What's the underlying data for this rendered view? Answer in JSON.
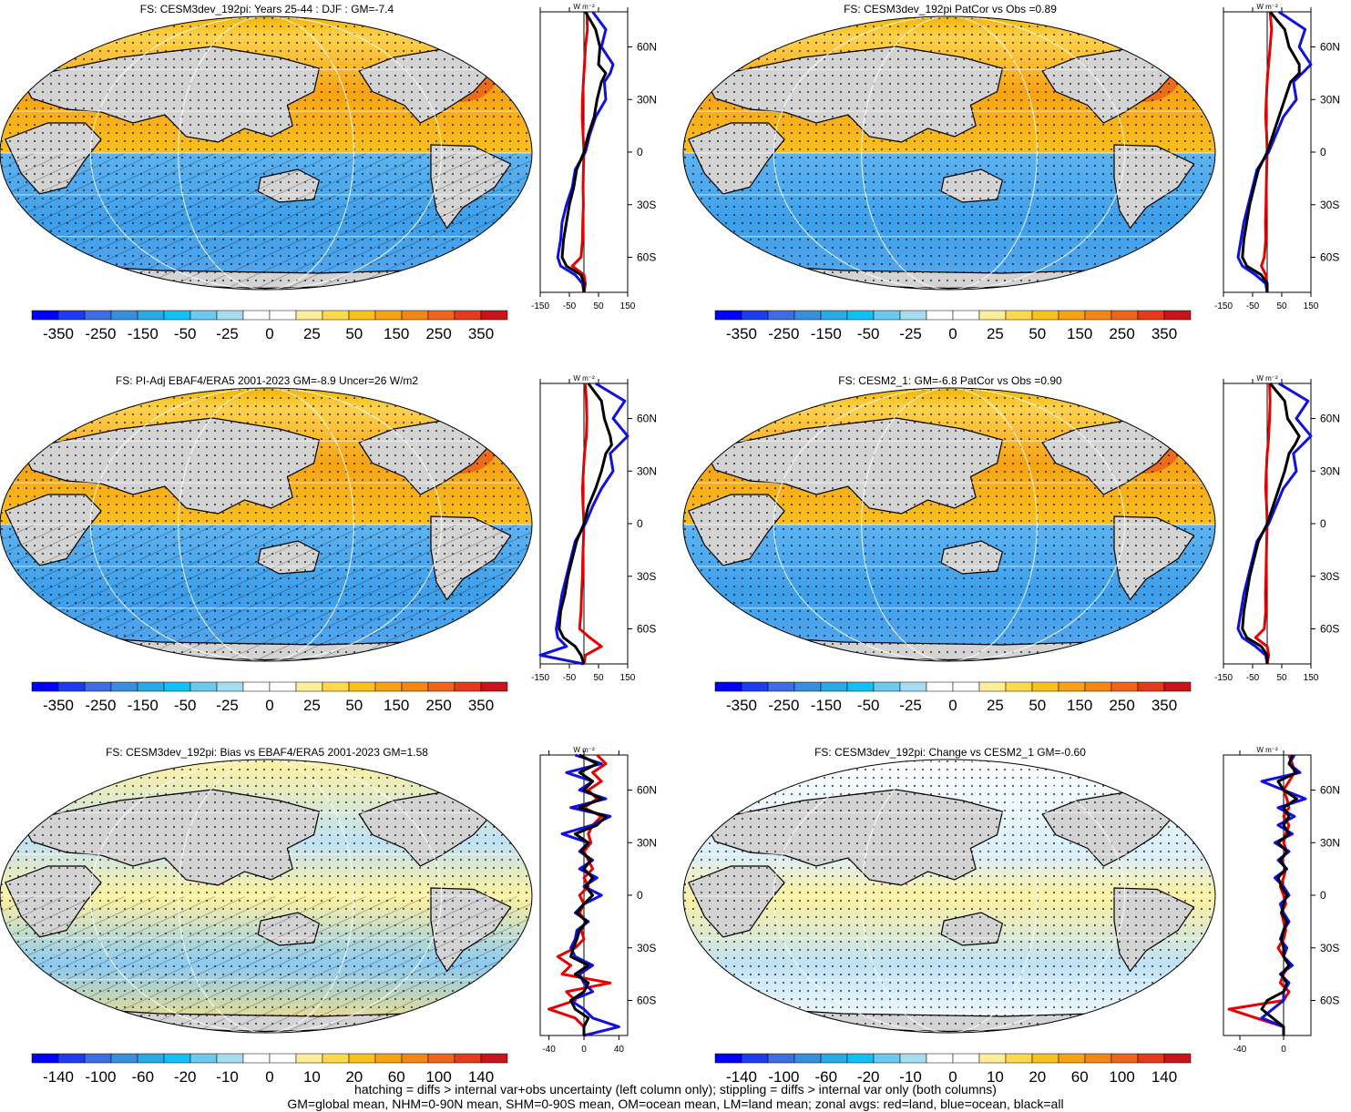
{
  "chart_data": [
    {
      "type": "map",
      "title": "FS: CESM3dev_192pi: Years 25-44 : DJF : GM=-7.4",
      "colorbar": {
        "labels": [
          "-350",
          "-250",
          "-150",
          "-50",
          "-25",
          "0",
          "25",
          "50",
          "150",
          "250",
          "350"
        ]
      },
      "zonal_profile": {
        "unit": "W m⁻²",
        "xticks": [
          "-150",
          "-50",
          "50",
          "150"
        ],
        "yticks": [
          "60N",
          "30N",
          "0",
          "30S",
          "60S"
        ],
        "xlim": [
          -150,
          150
        ],
        "lat": [
          80,
          70,
          60,
          50,
          45,
          40,
          30,
          20,
          10,
          0,
          -10,
          -20,
          -30,
          -40,
          -50,
          -60,
          -65,
          -70,
          -75,
          -80
        ],
        "series": [
          {
            "name": "land",
            "values": [
              10,
              12,
              5,
              2,
              0,
              -2,
              -5,
              -6,
              -3,
              0,
              -2,
              -3,
              -2,
              -4,
              -5,
              -10,
              -40,
              0,
              5,
              0
            ]
          },
          {
            "name": "ocean",
            "values": [
              30,
              75,
              60,
              100,
              90,
              70,
              75,
              40,
              20,
              5,
              -30,
              -40,
              -60,
              -75,
              -80,
              -90,
              -80,
              -30,
              -5,
              0
            ]
          },
          {
            "name": "all",
            "values": [
              5,
              40,
              55,
              50,
              75,
              60,
              45,
              35,
              15,
              0,
              -25,
              -35,
              -50,
              -60,
              -70,
              -75,
              -60,
              -10,
              0,
              0
            ]
          }
        ]
      }
    },
    {
      "type": "map",
      "title": "FS: CESM3dev_192pi PatCor vs Obs =0.89",
      "colorbar": {
        "labels": [
          "-350",
          "-250",
          "-150",
          "-50",
          "-25",
          "0",
          "25",
          "50",
          "150",
          "250",
          "350"
        ]
      },
      "zonal_profile": {
        "unit": "W m⁻²",
        "xticks": [
          "-150",
          "-50",
          "50",
          "150"
        ],
        "yticks": [
          "60N",
          "30N",
          "0",
          "30S",
          "60S"
        ],
        "xlim": [
          -150,
          150
        ],
        "lat": [
          80,
          70,
          60,
          50,
          45,
          40,
          30,
          20,
          10,
          0,
          -10,
          -20,
          -30,
          -40,
          -50,
          -60,
          -65,
          -70,
          -75,
          -80
        ],
        "series": [
          {
            "name": "land",
            "values": [
              10,
              15,
              10,
              5,
              2,
              0,
              -3,
              -5,
              -2,
              0,
              -2,
              -3,
              -4,
              -6,
              -5,
              -10,
              -20,
              -5,
              0,
              0
            ]
          },
          {
            "name": "ocean",
            "values": [
              40,
              130,
              110,
              150,
              120,
              90,
              100,
              55,
              30,
              5,
              -35,
              -50,
              -65,
              -80,
              -90,
              -100,
              -85,
              -40,
              -5,
              0
            ]
          },
          {
            "name": "all",
            "values": [
              10,
              60,
              75,
              110,
              110,
              80,
              60,
              40,
              20,
              0,
              -30,
              -45,
              -60,
              -70,
              -80,
              -85,
              -70,
              -20,
              0,
              0
            ]
          }
        ]
      }
    },
    {
      "type": "map",
      "title": "FS: PI-Adj EBAF4/ERA5 2001-2023 GM=-8.9 Uncer=26 W/m2",
      "colorbar": {
        "labels": [
          "-350",
          "-250",
          "-150",
          "-50",
          "-25",
          "0",
          "25",
          "50",
          "150",
          "250",
          "350"
        ]
      },
      "zonal_profile": {
        "unit": "W m⁻²",
        "xticks": [
          "-150",
          "-50",
          "50",
          "150"
        ],
        "yticks": [
          "60N",
          "30N",
          "0",
          "30S",
          "60S"
        ],
        "xlim": [
          -150,
          150
        ],
        "lat": [
          80,
          70,
          60,
          50,
          45,
          40,
          30,
          20,
          10,
          0,
          -10,
          -20,
          -30,
          -40,
          -50,
          -60,
          -65,
          -70,
          -75,
          -80
        ],
        "series": [
          {
            "name": "land",
            "values": [
              5,
              8,
              10,
              8,
              5,
              2,
              -2,
              -5,
              -3,
              0,
              -2,
              -4,
              -5,
              -8,
              -10,
              -15,
              20,
              60,
              5,
              0
            ]
          },
          {
            "name": "ocean",
            "values": [
              40,
              140,
              100,
              150,
              120,
              90,
              100,
              60,
              30,
              5,
              -30,
              -45,
              -60,
              -75,
              -85,
              -95,
              -90,
              -60,
              -150,
              0
            ]
          },
          {
            "name": "all",
            "values": [
              15,
              60,
              70,
              90,
              95,
              75,
              60,
              40,
              15,
              0,
              -25,
              -40,
              -55,
              -65,
              -80,
              -85,
              -70,
              -30,
              -10,
              0
            ]
          }
        ]
      }
    },
    {
      "type": "map",
      "title": "FS: CESM2_1: GM=-6.8 PatCor vs Obs =0.90",
      "colorbar": {
        "labels": [
          "-350",
          "-250",
          "-150",
          "-50",
          "-25",
          "0",
          "25",
          "50",
          "150",
          "250",
          "350"
        ]
      },
      "zonal_profile": {
        "unit": "W m⁻²",
        "xticks": [
          "-150",
          "-50",
          "50",
          "150"
        ],
        "yticks": [
          "60N",
          "30N",
          "0",
          "30S",
          "60S"
        ],
        "xlim": [
          -150,
          150
        ],
        "lat": [
          80,
          70,
          60,
          50,
          45,
          40,
          30,
          20,
          10,
          0,
          -10,
          -20,
          -30,
          -40,
          -50,
          -60,
          -65,
          -70,
          -75,
          -80
        ],
        "series": [
          {
            "name": "land",
            "values": [
              8,
              10,
              8,
              5,
              3,
              0,
              -3,
              -5,
              -2,
              0,
              -2,
              -3,
              -4,
              -6,
              -5,
              -10,
              -40,
              0,
              5,
              0
            ]
          },
          {
            "name": "ocean",
            "values": [
              40,
              140,
              100,
              150,
              120,
              90,
              100,
              55,
              30,
              5,
              -35,
              -50,
              -65,
              -80,
              -90,
              -100,
              -85,
              -40,
              -5,
              0
            ]
          },
          {
            "name": "all",
            "values": [
              10,
              60,
              70,
              110,
              95,
              75,
              60,
              40,
              20,
              0,
              -30,
              -45,
              -60,
              -70,
              -80,
              -85,
              -70,
              -20,
              0,
              0
            ]
          }
        ]
      }
    },
    {
      "type": "map",
      "title": "FS: CESM3dev_192pi: Bias vs EBAF4/ERA5 2001-2023 GM=1.58",
      "colorbar": {
        "labels": [
          "-140",
          "-100",
          "-60",
          "-20",
          "-10",
          "0",
          "10",
          "20",
          "60",
          "100",
          "140"
        ]
      },
      "zonal_profile": {
        "unit": "W m⁻²",
        "xticks": [
          "-40",
          "0",
          "40"
        ],
        "yticks": [
          "60N",
          "30N",
          "0",
          "30S",
          "60S"
        ],
        "xlim": [
          -50,
          50
        ],
        "lat": [
          80,
          75,
          70,
          65,
          60,
          55,
          50,
          45,
          40,
          35,
          30,
          25,
          20,
          15,
          10,
          5,
          0,
          -5,
          -10,
          -15,
          -20,
          -25,
          -30,
          -35,
          -40,
          -45,
          -50,
          -55,
          -60,
          -65,
          -70,
          -75,
          -80
        ],
        "series": [
          {
            "name": "land",
            "values": [
              15,
              25,
              10,
              20,
              5,
              15,
              0,
              20,
              10,
              5,
              8,
              0,
              5,
              10,
              0,
              5,
              -5,
              0,
              -5,
              2,
              -3,
              0,
              -10,
              -30,
              -15,
              -25,
              30,
              -20,
              -10,
              -40,
              -10,
              0,
              0
            ]
          },
          {
            "name": "ocean",
            "values": [
              -10,
              20,
              -20,
              10,
              -5,
              25,
              -15,
              30,
              10,
              -25,
              5,
              -5,
              10,
              -5,
              15,
              0,
              20,
              0,
              -10,
              5,
              -8,
              -10,
              -15,
              -10,
              10,
              -5,
              0,
              10,
              -15,
              0,
              10,
              40,
              0
            ]
          },
          {
            "name": "all",
            "values": [
              -5,
              15,
              -5,
              10,
              0,
              20,
              -5,
              25,
              15,
              -10,
              5,
              -3,
              8,
              0,
              10,
              2,
              10,
              0,
              -8,
              3,
              -5,
              -8,
              -12,
              -15,
              5,
              -10,
              5,
              0,
              -15,
              -10,
              5,
              0,
              0
            ]
          }
        ]
      }
    },
    {
      "type": "map",
      "title": "FS: CESM3dev_192pi: Change vs CESM2_1 GM=-0.60",
      "colorbar": {
        "labels": [
          "-140",
          "-100",
          "-60",
          "-20",
          "-10",
          "0",
          "10",
          "20",
          "60",
          "100",
          "140"
        ]
      },
      "zonal_profile": {
        "unit": "W m⁻²",
        "xticks": [
          "-40",
          "0"
        ],
        "yticks": [
          "60N",
          "30N",
          "0",
          "30S",
          "60S"
        ],
        "xlim": [
          -55,
          25
        ],
        "lat": [
          80,
          75,
          70,
          65,
          60,
          55,
          50,
          45,
          40,
          35,
          30,
          25,
          20,
          15,
          10,
          5,
          0,
          -5,
          -10,
          -15,
          -20,
          -25,
          -30,
          -35,
          -40,
          -45,
          -50,
          -55,
          -60,
          -65,
          -70,
          -75,
          -80
        ],
        "series": [
          {
            "name": "land",
            "values": [
              5,
              8,
              10,
              5,
              0,
              3,
              5,
              0,
              5,
              2,
              0,
              3,
              -2,
              2,
              0,
              -3,
              0,
              2,
              -2,
              0,
              2,
              0,
              -5,
              0,
              5,
              0,
              -3,
              5,
              0,
              -50,
              -25,
              0,
              0
            ]
          },
          {
            "name": "ocean",
            "values": [
              10,
              5,
              15,
              -20,
              0,
              20,
              -5,
              10,
              -5,
              8,
              -8,
              5,
              -5,
              3,
              -8,
              0,
              5,
              -3,
              0,
              5,
              0,
              -3,
              3,
              0,
              8,
              -3,
              5,
              0,
              0,
              -10,
              -20,
              0,
              0
            ]
          },
          {
            "name": "all",
            "values": [
              8,
              5,
              12,
              -5,
              0,
              12,
              0,
              5,
              0,
              5,
              -5,
              3,
              -3,
              2,
              -5,
              -2,
              3,
              0,
              -2,
              3,
              0,
              -2,
              0,
              0,
              5,
              -2,
              3,
              0,
              -15,
              -20,
              -10,
              0,
              0
            ]
          }
        ]
      }
    }
  ],
  "colors": {
    "land_fill": "#d3d3d3",
    "ocean_fill": "#ffffff",
    "land_line": "#e60000",
    "ocean_line": "#1010e0",
    "all_line": "#000000",
    "colorbar": [
      "#0000ff",
      "#1c3cf0",
      "#3d6ce3",
      "#3a8fdc",
      "#2aa9e6",
      "#12bff4",
      "#6cc8ec",
      "#a6dcf0",
      "#ffffff",
      "#ffffff",
      "#ffef9a",
      "#ffd84d",
      "#f9c01e",
      "#f6a313",
      "#f48617",
      "#f0641a",
      "#e33b1b",
      "#c8141a"
    ]
  },
  "footer": {
    "line1": "hatching = diffs > internal var+obs uncertainty (left column only); stippling = diffs > internal var only (both columns)",
    "line2": "GM=global mean, NHM=0-90N mean, SHM=0-90S mean, OM=ocean mean, LM=land mean; zonal avgs: red=land, blue=ocean, black=all"
  }
}
